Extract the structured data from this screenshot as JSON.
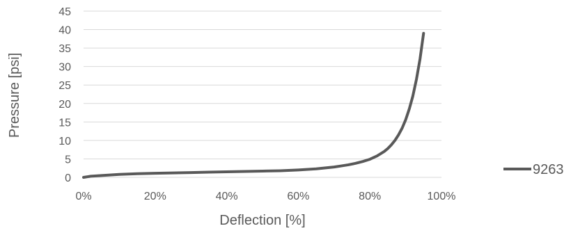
{
  "chart_data": {
    "type": "line",
    "title": "",
    "xlabel": "Deflection [%]",
    "ylabel": "Pressure [psi]",
    "xlim": [
      0,
      100
    ],
    "ylim": [
      0,
      45
    ],
    "x_ticks": [
      0,
      20,
      40,
      60,
      80,
      100
    ],
    "x_tick_labels": [
      "0%",
      "20%",
      "40%",
      "60%",
      "80%",
      "100%"
    ],
    "y_ticks": [
      0,
      5,
      10,
      15,
      20,
      25,
      30,
      35,
      40,
      45
    ],
    "y_tick_labels": [
      "0",
      "5",
      "10",
      "15",
      "20",
      "25",
      "30",
      "35",
      "40",
      "45"
    ],
    "grid": "horizontal",
    "legend_position": "right",
    "series": [
      {
        "name": "9263",
        "color": "#595959",
        "x": [
          0,
          2,
          5,
          10,
          15,
          20,
          25,
          30,
          35,
          40,
          45,
          50,
          55,
          60,
          65,
          70,
          72,
          74,
          76,
          78,
          80,
          82,
          84,
          85,
          86,
          87,
          88,
          89,
          90,
          91,
          92,
          93,
          94,
          94.5,
          95
        ],
        "y": [
          0,
          0.3,
          0.5,
          0.8,
          1.0,
          1.1,
          1.2,
          1.3,
          1.4,
          1.5,
          1.6,
          1.7,
          1.8,
          2.0,
          2.3,
          2.8,
          3.1,
          3.4,
          3.8,
          4.3,
          4.9,
          5.8,
          7.0,
          7.8,
          8.8,
          10.0,
          11.5,
          13.3,
          15.6,
          18.5,
          22.0,
          26.5,
          32.0,
          35.5,
          39.0
        ]
      }
    ]
  }
}
